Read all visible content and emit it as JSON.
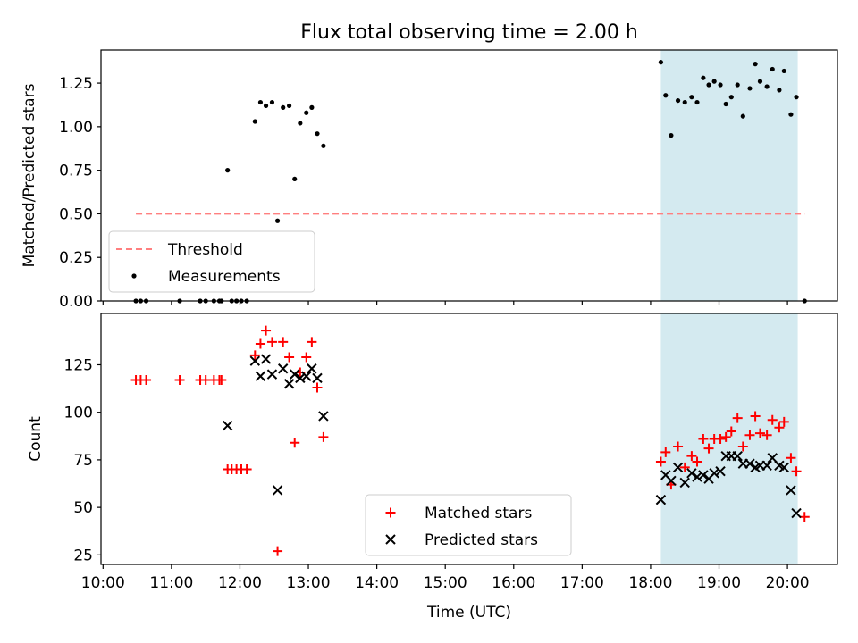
{
  "figure": {
    "title": "Flux total observing time = 2.00 h"
  },
  "chart_data": [
    {
      "type": "scatter",
      "panel": "top",
      "ylabel": "Matched/Predicted stars",
      "xlabel": "",
      "xlim": [
        9.97,
        20.73
      ],
      "ylim": [
        0.0,
        1.44
      ],
      "yticks": [
        0.0,
        0.25,
        0.5,
        0.75,
        1.0,
        1.25
      ],
      "ytick_labels": [
        "0.00",
        "0.25",
        "0.50",
        "0.75",
        "1.00",
        "1.25"
      ],
      "xticks": [
        10,
        11,
        12,
        13,
        14,
        15,
        16,
        17,
        18,
        19,
        20
      ],
      "highlight_span": {
        "x": [
          18.15,
          20.15
        ],
        "color": "#d4eaf0"
      },
      "legend_loc": "lower-left",
      "series": [
        {
          "name": "Threshold",
          "kind": "line",
          "style": "dashed",
          "color": "#ff7f7f",
          "x": [
            10.48,
            20.25
          ],
          "y": [
            0.5,
            0.5
          ]
        },
        {
          "name": "Measurements",
          "kind": "scatter",
          "marker": "dot",
          "color": "#000000",
          "x": [
            10.48,
            10.55,
            10.63,
            11.12,
            11.42,
            11.5,
            11.62,
            11.7,
            11.73,
            11.82,
            11.88,
            11.95,
            12.02,
            12.1,
            12.22,
            12.3,
            12.38,
            12.47,
            12.55,
            12.63,
            12.72,
            12.8,
            12.88,
            12.97,
            13.05,
            13.13,
            13.22,
            18.15,
            18.22,
            18.3,
            18.4,
            18.5,
            18.6,
            18.68,
            18.77,
            18.85,
            18.93,
            19.02,
            19.1,
            19.18,
            19.27,
            19.35,
            19.45,
            19.53,
            19.6,
            19.7,
            19.78,
            19.88,
            19.95,
            20.05,
            20.13,
            20.25
          ],
          "y": [
            0.0,
            0.0,
            0.0,
            0.0,
            0.0,
            0.0,
            0.0,
            0.0,
            0.0,
            0.75,
            0.0,
            0.0,
            0.0,
            0.0,
            1.03,
            1.14,
            1.12,
            1.14,
            0.46,
            1.11,
            1.12,
            0.7,
            1.02,
            1.08,
            1.11,
            0.96,
            0.89,
            1.37,
            1.18,
            0.95,
            1.15,
            1.14,
            1.17,
            1.14,
            1.28,
            1.24,
            1.26,
            1.24,
            1.13,
            1.17,
            1.24,
            1.06,
            1.22,
            1.36,
            1.26,
            1.23,
            1.33,
            1.21,
            1.32,
            1.07,
            1.17,
            0.0
          ]
        }
      ]
    },
    {
      "type": "scatter",
      "panel": "bottom",
      "ylabel": "Count",
      "xlabel": "Time (UTC)",
      "xlim": [
        9.97,
        20.73
      ],
      "ylim": [
        20,
        152
      ],
      "yticks": [
        25,
        50,
        75,
        100,
        125
      ],
      "xticks": [
        10,
        11,
        12,
        13,
        14,
        15,
        16,
        17,
        18,
        19,
        20
      ],
      "xtick_labels": [
        "10:00",
        "11:00",
        "12:00",
        "13:00",
        "14:00",
        "15:00",
        "16:00",
        "17:00",
        "18:00",
        "19:00",
        "20:00"
      ],
      "highlight_span": {
        "x": [
          18.15,
          20.15
        ],
        "color": "#d4eaf0"
      },
      "legend_loc": "lower-center",
      "series": [
        {
          "name": "Matched stars",
          "kind": "scatter",
          "marker": "plus",
          "color": "#ff0000",
          "x": [
            10.48,
            10.55,
            10.63,
            11.12,
            11.42,
            11.5,
            11.62,
            11.7,
            11.73,
            11.82,
            11.88,
            11.95,
            12.02,
            12.1,
            12.22,
            12.3,
            12.38,
            12.47,
            12.55,
            12.63,
            12.72,
            12.8,
            12.88,
            12.97,
            13.05,
            13.13,
            13.22,
            18.15,
            18.22,
            18.3,
            18.4,
            18.5,
            18.6,
            18.68,
            18.77,
            18.85,
            18.93,
            19.02,
            19.1,
            19.18,
            19.27,
            19.35,
            19.45,
            19.53,
            19.6,
            19.7,
            19.78,
            19.88,
            19.95,
            20.05,
            20.13,
            20.25
          ],
          "y": [
            117,
            117,
            117,
            117,
            117,
            117,
            117,
            117,
            117,
            70,
            70,
            70,
            70,
            70,
            130,
            136,
            143,
            137,
            27,
            137,
            129,
            84,
            121,
            129,
            137,
            113,
            87,
            74,
            79,
            62,
            82,
            71,
            77,
            74,
            86,
            81,
            86,
            86,
            87,
            90,
            97,
            82,
            88,
            98,
            89,
            88,
            96,
            92,
            95,
            76,
            69,
            45
          ]
        },
        {
          "name": "Predicted stars",
          "kind": "scatter",
          "marker": "x",
          "color": "#000000",
          "x": [
            11.82,
            12.22,
            12.3,
            12.38,
            12.47,
            12.55,
            12.63,
            12.72,
            12.8,
            12.88,
            12.97,
            13.05,
            13.13,
            13.22,
            18.15,
            18.22,
            18.3,
            18.4,
            18.5,
            18.6,
            18.68,
            18.77,
            18.85,
            18.93,
            19.02,
            19.1,
            19.18,
            19.27,
            19.35,
            19.45,
            19.53,
            19.6,
            19.7,
            19.78,
            19.88,
            19.95,
            20.05,
            20.13
          ],
          "y": [
            93,
            127,
            119,
            128,
            120,
            59,
            123,
            115,
            120,
            118,
            119,
            123,
            118,
            98,
            54,
            67,
            64,
            71,
            63,
            68,
            66,
            67,
            65,
            68,
            69,
            77,
            77,
            77,
            73,
            73,
            71,
            72,
            72,
            76,
            72,
            71,
            59,
            47
          ]
        }
      ]
    }
  ]
}
